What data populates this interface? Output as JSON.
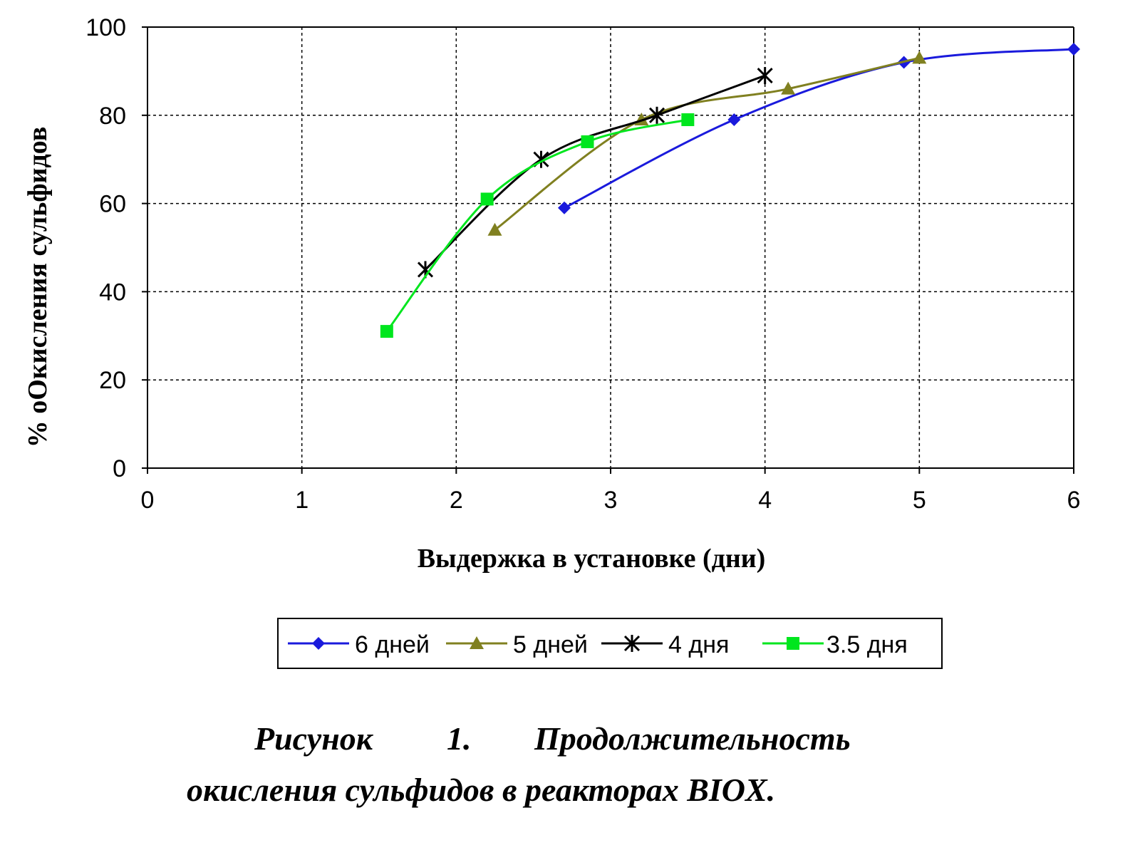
{
  "chart_data": {
    "type": "line",
    "xlabel": "Выдержка в установке (дни)",
    "ylabel": "% оОкисления сульфидов",
    "xlim": [
      0,
      6
    ],
    "ylim": [
      0,
      100
    ],
    "x_ticks": [
      "0",
      "1",
      "2",
      "3",
      "4",
      "5",
      "6"
    ],
    "y_ticks": [
      "0",
      "20",
      "40",
      "60",
      "80",
      "100"
    ],
    "grid": true,
    "legend_position": "bottom",
    "series": [
      {
        "name": "6 дней",
        "color": "#1a1adc",
        "marker": "diamond",
        "points": [
          [
            2.7,
            59
          ],
          [
            3.8,
            79
          ],
          [
            4.9,
            92
          ],
          [
            6.0,
            95
          ]
        ]
      },
      {
        "name": "5 дней",
        "color": "#808020",
        "marker": "triangle",
        "points": [
          [
            2.25,
            54
          ],
          [
            3.2,
            79
          ],
          [
            4.15,
            86
          ],
          [
            5.0,
            93
          ]
        ]
      },
      {
        "name": "4 дня",
        "color": "#000000",
        "marker": "asterisk",
        "points": [
          [
            1.8,
            45
          ],
          [
            2.55,
            70
          ],
          [
            3.3,
            80
          ],
          [
            4.0,
            89
          ]
        ]
      },
      {
        "name": "3.5 дня",
        "color": "#00e61e",
        "marker": "square",
        "points": [
          [
            1.55,
            31
          ],
          [
            2.2,
            61
          ],
          [
            2.85,
            74
          ],
          [
            3.5,
            79
          ]
        ]
      }
    ]
  },
  "caption": {
    "line1": [
      "Рисунок",
      "1.",
      "Продолжительность"
    ],
    "line2": "окисления сульфидов в реакторах BIOX."
  }
}
